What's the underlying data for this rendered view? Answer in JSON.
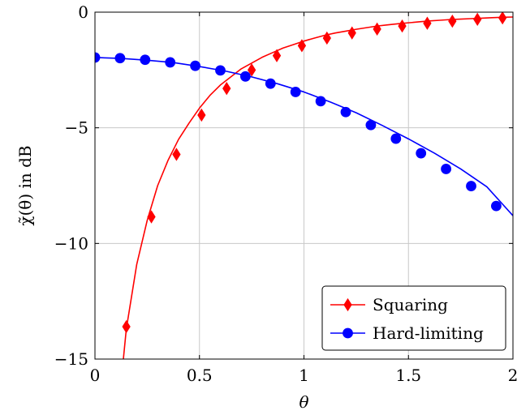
{
  "chart_data": {
    "type": "line",
    "xlabel": "θ",
    "ylabel": "χ̃(θ) in dB",
    "xlim": [
      0,
      2
    ],
    "ylim": [
      -15,
      0
    ],
    "xticks": [
      0,
      0.5,
      1,
      1.5,
      2
    ],
    "xtick_labels": [
      "0",
      "0.5",
      "1",
      "1.5",
      "2"
    ],
    "yticks": [
      -15,
      -10,
      -5,
      0
    ],
    "ytick_labels": [
      "−15",
      "−10",
      "−5",
      "0"
    ],
    "grid": true,
    "legend_position": "bottom-right",
    "series": [
      {
        "name": "Squaring",
        "color": "#ff0000",
        "marker": "diamond",
        "x": [
          0.125,
          0.15,
          0.2,
          0.25,
          0.3,
          0.35,
          0.4,
          0.45,
          0.5,
          0.55,
          0.6,
          0.65,
          0.7,
          0.75,
          0.8,
          0.85,
          0.9,
          0.95,
          1.0,
          1.05,
          1.1,
          1.15,
          1.2,
          1.25,
          1.3,
          1.35,
          1.4,
          1.45,
          1.5,
          1.55,
          1.6,
          1.65,
          1.7,
          1.75,
          1.8,
          1.85,
          1.9,
          1.95,
          2.0
        ],
        "y": [
          -16.0,
          -13.7,
          -10.9,
          -9.0,
          -7.5,
          -6.4,
          -5.5,
          -4.8,
          -4.15,
          -3.6,
          -3.15,
          -2.8,
          -2.45,
          -2.2,
          -1.95,
          -1.75,
          -1.55,
          -1.4,
          -1.25,
          -1.12,
          -1.0,
          -0.9,
          -0.82,
          -0.74,
          -0.67,
          -0.6,
          -0.55,
          -0.5,
          -0.46,
          -0.42,
          -0.38,
          -0.35,
          -0.32,
          -0.3,
          -0.28,
          -0.26,
          -0.24,
          -0.22,
          -0.21
        ],
        "markers_x": [
          0.15,
          0.27,
          0.39,
          0.51,
          0.63,
          0.75,
          0.87,
          0.99,
          1.11,
          1.23,
          1.35,
          1.47,
          1.59,
          1.71,
          1.83,
          1.95
        ],
        "markers_y": [
          -13.6,
          -8.85,
          -6.15,
          -4.45,
          -3.3,
          -2.5,
          -1.88,
          -1.45,
          -1.12,
          -0.9,
          -0.73,
          -0.6,
          -0.48,
          -0.39,
          -0.31,
          -0.25
        ]
      },
      {
        "name": "Hard-limiting",
        "color": "#0000ff",
        "marker": "circle",
        "x": [
          0.0,
          0.125,
          0.25,
          0.375,
          0.5,
          0.625,
          0.75,
          0.875,
          1.0,
          1.125,
          1.25,
          1.375,
          1.5,
          1.625,
          1.75,
          1.875,
          2.0
        ],
        "y": [
          -1.96,
          -2.0,
          -2.08,
          -2.18,
          -2.35,
          -2.55,
          -2.8,
          -3.1,
          -3.45,
          -3.88,
          -4.35,
          -4.9,
          -5.48,
          -6.1,
          -6.78,
          -7.55,
          -8.8
        ],
        "markers_x": [
          0.0,
          0.12,
          0.24,
          0.36,
          0.48,
          0.6,
          0.72,
          0.84,
          0.96,
          1.08,
          1.2,
          1.32,
          1.44,
          1.56,
          1.68,
          1.8,
          1.92
        ],
        "markers_y": [
          -1.96,
          -1.99,
          -2.06,
          -2.17,
          -2.32,
          -2.52,
          -2.78,
          -3.09,
          -3.45,
          -3.85,
          -4.32,
          -4.88,
          -5.47,
          -6.1,
          -6.78,
          -7.52,
          -8.38
        ]
      }
    ]
  }
}
